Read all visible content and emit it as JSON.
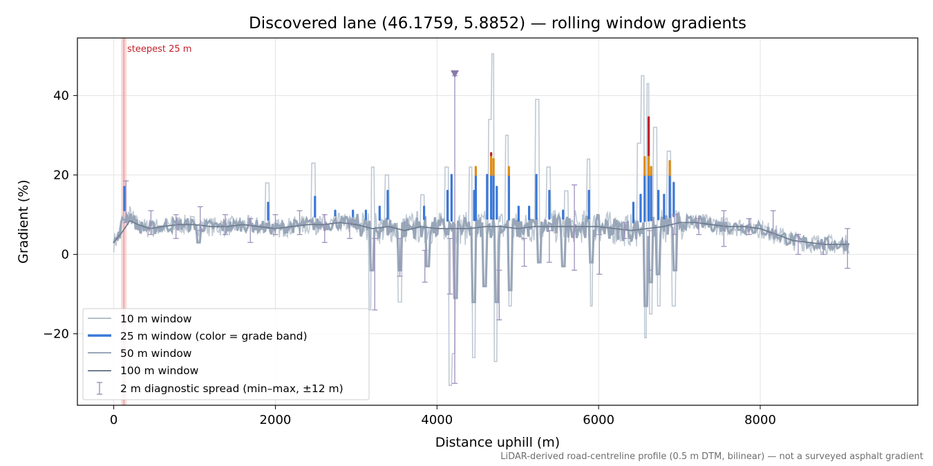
{
  "chart_data": {
    "type": "line",
    "title": "Discovered lane (46.1759, 5.8852) — rolling window gradients",
    "xlabel": "Distance uphill (m)",
    "ylabel": "Gradient (%)",
    "xlim": [
      -450,
      9950
    ],
    "ylim": [
      -38,
      54.5
    ],
    "xticks": [
      0,
      2000,
      4000,
      6000,
      8000
    ],
    "yticks": [
      -20,
      0,
      20,
      40
    ],
    "xtick_labels": [
      "0",
      "2000",
      "4000",
      "6000",
      "8000"
    ],
    "ytick_labels": [
      "−20",
      "0",
      "20",
      "40"
    ],
    "grid": true,
    "legend_position": "lower-left",
    "footnote": "LiDAR-derived road-centreline profile (0.5 m DTM, bilinear) — not a surveyed asphalt gradient",
    "annotation": {
      "label": "steepest 25 m",
      "x": 125
    },
    "max_marker": {
      "x": 4220,
      "y": 45.3
    },
    "colors": {
      "w10": "#b4bfcc",
      "w25": "#3a78d8",
      "w50": "#98a6b8",
      "w100": "#6f7d91",
      "spread": "#9d8fbb",
      "band_orange": "#e08c10",
      "band_red": "#c0202a",
      "highlight": "#f3b7b7"
    },
    "series": [
      {
        "name": "10 m window",
        "key": "w10"
      },
      {
        "name": "25 m window (color = grade band)",
        "key": "w25"
      },
      {
        "name": "50 m window",
        "key": "w50"
      },
      {
        "name": "100 m window",
        "key": "w100"
      },
      {
        "name": "2 m diagnostic spread (min–max, ±12 m)",
        "key": "spread"
      }
    ],
    "baseline": {
      "x": [
        0,
        60,
        120,
        200,
        300,
        450,
        600,
        800,
        1000,
        1200,
        1400,
        1600,
        1800,
        2000,
        2200,
        2400,
        2600,
        2800,
        3000,
        3200,
        3400,
        3600,
        3800,
        4000,
        4200,
        4400,
        4600,
        4800,
        5000,
        5200,
        5400,
        5600,
        5800,
        6000,
        6200,
        6400,
        6600,
        6800,
        7000,
        7200,
        7400,
        7600,
        7800,
        8000,
        8200,
        8400,
        8600,
        8800,
        9000,
        9100
      ],
      "y": [
        3,
        4.5,
        9,
        10,
        7,
        6.5,
        7,
        7.5,
        7.5,
        7,
        7,
        7.5,
        7,
        6.5,
        7,
        7.5,
        7.5,
        8,
        7.5,
        6.5,
        7,
        6.5,
        7,
        6.5,
        6.5,
        6.5,
        7,
        7,
        6.5,
        7,
        7,
        7,
        7,
        7,
        6.5,
        6,
        6.5,
        7,
        8,
        8,
        7.5,
        7,
        7,
        6.5,
        5,
        3.5,
        3,
        2.5,
        2.5,
        2.5
      ]
    },
    "w100": {
      "x": [
        0,
        100,
        200,
        300,
        450,
        600,
        800,
        1000,
        1200,
        1400,
        1600,
        1800,
        2000,
        2200,
        2400,
        2600,
        2800,
        3000,
        3200,
        3400,
        3600,
        3800,
        4000,
        4200,
        4400,
        4600,
        4800,
        5000,
        5200,
        5400,
        5600,
        5800,
        6000,
        6200,
        6400,
        6600,
        6800,
        7000,
        7200,
        7400,
        7600,
        7800,
        8000,
        8200,
        8400,
        8600,
        8800,
        9000,
        9100
      ],
      "y": [
        3,
        5.5,
        8.5,
        7.5,
        6.5,
        7,
        7.5,
        7.5,
        7,
        7,
        7.5,
        7,
        6.5,
        7,
        7.5,
        7.5,
        8,
        7.5,
        6.5,
        7,
        6,
        7,
        6.5,
        6.5,
        6.5,
        7,
        7,
        6.5,
        7,
        7,
        7,
        7,
        7,
        6.5,
        6,
        6.5,
        7,
        8,
        8,
        7.5,
        7,
        7,
        6.5,
        5,
        3.5,
        3,
        2.5,
        2.5,
        2.5
      ]
    },
    "w25_spikes": [
      {
        "x": 130,
        "y": 17,
        "band": "blue"
      },
      {
        "x": 1910,
        "y": 13,
        "band": "blue"
      },
      {
        "x": 2490,
        "y": 14.5,
        "band": "blue"
      },
      {
        "x": 2740,
        "y": 11,
        "band": "blue"
      },
      {
        "x": 2960,
        "y": 11,
        "band": "blue"
      },
      {
        "x": 3120,
        "y": 11,
        "band": "blue"
      },
      {
        "x": 3290,
        "y": 12,
        "band": "blue"
      },
      {
        "x": 3390,
        "y": 16,
        "band": "blue"
      },
      {
        "x": 3840,
        "y": 12,
        "band": "blue"
      },
      {
        "x": 4130,
        "y": 16,
        "band": "blue"
      },
      {
        "x": 4180,
        "y": 20,
        "band": "blue"
      },
      {
        "x": 4460,
        "y": 16,
        "band": "blue"
      },
      {
        "x": 4480,
        "y": 22,
        "band": "orange"
      },
      {
        "x": 4620,
        "y": 20,
        "band": "blue"
      },
      {
        "x": 4670,
        "y": 25.5,
        "band": "red"
      },
      {
        "x": 4700,
        "y": 24,
        "band": "orange"
      },
      {
        "x": 4740,
        "y": 17,
        "band": "blue"
      },
      {
        "x": 4890,
        "y": 22,
        "band": "orange"
      },
      {
        "x": 5010,
        "y": 12,
        "band": "blue"
      },
      {
        "x": 5140,
        "y": 12,
        "band": "blue"
      },
      {
        "x": 5230,
        "y": 20,
        "band": "blue"
      },
      {
        "x": 5390,
        "y": 16,
        "band": "blue"
      },
      {
        "x": 5560,
        "y": 11,
        "band": "blue"
      },
      {
        "x": 5880,
        "y": 16,
        "band": "blue"
      },
      {
        "x": 6430,
        "y": 13,
        "band": "blue"
      },
      {
        "x": 6520,
        "y": 15,
        "band": "blue"
      },
      {
        "x": 6570,
        "y": 24.5,
        "band": "orange"
      },
      {
        "x": 6620,
        "y": 34.5,
        "band": "red"
      },
      {
        "x": 6650,
        "y": 22,
        "band": "orange"
      },
      {
        "x": 6740,
        "y": 16,
        "band": "blue"
      },
      {
        "x": 6810,
        "y": 15,
        "band": "blue"
      },
      {
        "x": 6880,
        "y": 23.5,
        "band": "orange"
      },
      {
        "x": 6930,
        "y": 18,
        "band": "blue"
      }
    ],
    "w10_spikes": [
      {
        "x": 1900,
        "y": 18
      },
      {
        "x": 2470,
        "y": 23
      },
      {
        "x": 3200,
        "y": 22
      },
      {
        "x": 3180,
        "y": -14
      },
      {
        "x": 3380,
        "y": 20
      },
      {
        "x": 3540,
        "y": -12
      },
      {
        "x": 3820,
        "y": 15
      },
      {
        "x": 4120,
        "y": 22
      },
      {
        "x": 4170,
        "y": -33
      },
      {
        "x": 4200,
        "y": -25
      },
      {
        "x": 4420,
        "y": 22
      },
      {
        "x": 4450,
        "y": -26
      },
      {
        "x": 4660,
        "y": 34
      },
      {
        "x": 4680,
        "y": 50.5
      },
      {
        "x": 4720,
        "y": -27
      },
      {
        "x": 4870,
        "y": 30
      },
      {
        "x": 4900,
        "y": -13
      },
      {
        "x": 5240,
        "y": 39
      },
      {
        "x": 5240,
        "y": -15
      },
      {
        "x": 5380,
        "y": 22
      },
      {
        "x": 5600,
        "y": 16
      },
      {
        "x": 5880,
        "y": 24
      },
      {
        "x": 5900,
        "y": -13
      },
      {
        "x": 6500,
        "y": 28
      },
      {
        "x": 6550,
        "y": 45
      },
      {
        "x": 6580,
        "y": -21
      },
      {
        "x": 6610,
        "y": 43
      },
      {
        "x": 6640,
        "y": -15
      },
      {
        "x": 6700,
        "y": 32
      },
      {
        "x": 6740,
        "y": -13
      },
      {
        "x": 6870,
        "y": 26
      },
      {
        "x": 6930,
        "y": -13
      }
    ],
    "w50_dips": [
      {
        "x": 1050,
        "y": 3
      },
      {
        "x": 3190,
        "y": -4
      },
      {
        "x": 3540,
        "y": -4
      },
      {
        "x": 3880,
        "y": -3
      },
      {
        "x": 4230,
        "y": -11
      },
      {
        "x": 4450,
        "y": -12
      },
      {
        "x": 4590,
        "y": -8
      },
      {
        "x": 4740,
        "y": -12
      },
      {
        "x": 4900,
        "y": -9
      },
      {
        "x": 5260,
        "y": -2
      },
      {
        "x": 5560,
        "y": -3
      },
      {
        "x": 5910,
        "y": -2
      },
      {
        "x": 6580,
        "y": -13
      },
      {
        "x": 6640,
        "y": -7
      },
      {
        "x": 6740,
        "y": -5
      },
      {
        "x": 6950,
        "y": -4
      }
    ],
    "spread_bars": [
      {
        "x": 150,
        "min": 8,
        "max": 18.5
      },
      {
        "x": 460,
        "min": 5,
        "max": 11
      },
      {
        "x": 770,
        "min": 4,
        "max": 10
      },
      {
        "x": 1070,
        "min": 6,
        "max": 12
      },
      {
        "x": 1380,
        "min": 5,
        "max": 10
      },
      {
        "x": 1690,
        "min": 3,
        "max": 9
      },
      {
        "x": 2000,
        "min": 5,
        "max": 10
      },
      {
        "x": 2300,
        "min": 5,
        "max": 11
      },
      {
        "x": 2610,
        "min": 3,
        "max": 10
      },
      {
        "x": 2920,
        "min": 4,
        "max": 8
      },
      {
        "x": 3230,
        "min": -14,
        "max": 4
      },
      {
        "x": 3540,
        "min": -5.5,
        "max": 4
      },
      {
        "x": 3850,
        "min": -7,
        "max": 1
      },
      {
        "x": 4160,
        "min": -10,
        "max": 4
      },
      {
        "x": 4220,
        "min": -32.5,
        "max": 45
      },
      {
        "x": 4770,
        "min": -16.5,
        "max": -4
      },
      {
        "x": 5080,
        "min": -3,
        "max": 4
      },
      {
        "x": 5390,
        "min": -2,
        "max": 6
      },
      {
        "x": 5700,
        "min": -4,
        "max": 17.5
      },
      {
        "x": 6010,
        "min": -5,
        "max": 5
      },
      {
        "x": 6320,
        "min": 4,
        "max": 8
      },
      {
        "x": 6630,
        "min": -4,
        "max": 6
      },
      {
        "x": 6940,
        "min": 5,
        "max": 10
      },
      {
        "x": 7240,
        "min": 5,
        "max": 9
      },
      {
        "x": 7550,
        "min": 2,
        "max": 11
      },
      {
        "x": 7860,
        "min": 5,
        "max": 9
      },
      {
        "x": 8160,
        "min": 5,
        "max": 11
      },
      {
        "x": 8470,
        "min": 0,
        "max": 5
      },
      {
        "x": 8780,
        "min": 0,
        "max": 3
      },
      {
        "x": 9080,
        "min": -3.5,
        "max": 6.5
      }
    ]
  }
}
